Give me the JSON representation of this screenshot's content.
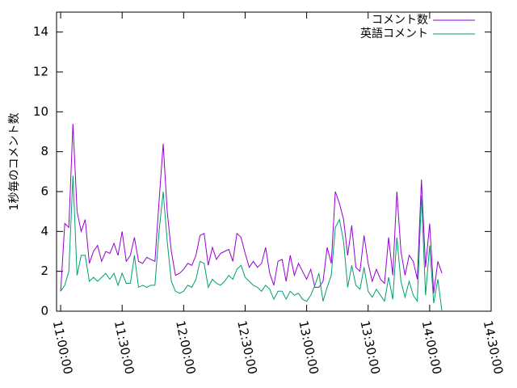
{
  "chart_data": {
    "type": "line",
    "ylabel": "1秒毎のコメント数",
    "x": [
      39600,
      39720,
      39840,
      39960,
      40080,
      40200,
      40320,
      40440,
      40560,
      40680,
      40800,
      40920,
      41040,
      41160,
      41280,
      41400,
      41520,
      41640,
      41760,
      41880,
      42000,
      42120,
      42240,
      42360,
      42480,
      42600,
      42720,
      42840,
      42960,
      43080,
      43200,
      43320,
      43440,
      43560,
      43680,
      43800,
      43920,
      44040,
      44160,
      44280,
      44400,
      44520,
      44640,
      44760,
      44880,
      45000,
      45120,
      45240,
      45360,
      45480,
      45600,
      45720,
      45840,
      45960,
      46080,
      46200,
      46320,
      46440,
      46560,
      46680,
      46800,
      46920,
      47040,
      47160,
      47280,
      47400,
      47520,
      47640,
      47760,
      47880,
      48000,
      48120,
      48240,
      48360,
      48480,
      48600,
      48720,
      48840,
      48960,
      49080,
      49200,
      49320,
      49440,
      49560,
      49680,
      49800,
      49920,
      50040,
      50160,
      50280,
      50400,
      50520,
      50640,
      50760
    ],
    "series": [
      {
        "name": "コメント数",
        "color": "#9400d3",
        "values": [
          1.0,
          4.4,
          4.2,
          9.4,
          5.0,
          4.0,
          4.6,
          2.4,
          3.0,
          3.3,
          2.5,
          3.0,
          2.9,
          3.4,
          2.8,
          4.0,
          2.5,
          2.8,
          3.7,
          2.5,
          2.4,
          2.7,
          2.6,
          2.5,
          5.5,
          8.4,
          5.0,
          3.0,
          1.8,
          1.9,
          2.1,
          2.4,
          2.3,
          2.8,
          3.8,
          3.9,
          2.3,
          3.2,
          2.6,
          2.9,
          3.0,
          3.1,
          2.5,
          3.9,
          3.7,
          2.9,
          2.2,
          2.5,
          2.2,
          2.4,
          3.2,
          1.9,
          1.3,
          2.5,
          2.6,
          1.5,
          2.8,
          1.8,
          2.4,
          2.0,
          1.6,
          2.1,
          1.2,
          1.2,
          1.5,
          3.2,
          2.4,
          6.0,
          5.4,
          4.6,
          2.8,
          4.3,
          2.2,
          2.0,
          3.8,
          2.4,
          1.5,
          2.1,
          1.6,
          1.4,
          3.7,
          1.8,
          6.0,
          3.0,
          1.8,
          2.8,
          2.5,
          1.6,
          6.6,
          2.2,
          4.4,
          0.9,
          2.5,
          1.9
        ]
      },
      {
        "name": "英語コメント",
        "color": "#009e73",
        "values": [
          1.0,
          1.3,
          2.0,
          6.8,
          1.8,
          2.8,
          2.8,
          1.5,
          1.7,
          1.5,
          1.7,
          1.9,
          1.6,
          1.9,
          1.3,
          1.9,
          1.4,
          1.4,
          2.8,
          1.2,
          1.3,
          1.2,
          1.3,
          1.3,
          4.0,
          6.0,
          3.5,
          1.5,
          1.0,
          0.9,
          1.0,
          1.3,
          1.2,
          1.6,
          2.5,
          2.4,
          1.2,
          1.6,
          1.4,
          1.3,
          1.5,
          1.8,
          1.6,
          2.1,
          2.3,
          1.7,
          1.5,
          1.3,
          1.2,
          1.0,
          1.3,
          1.1,
          0.6,
          1.0,
          1.0,
          0.6,
          1.0,
          0.8,
          0.9,
          0.6,
          0.5,
          0.8,
          1.3,
          1.9,
          0.5,
          1.2,
          1.8,
          4.2,
          4.6,
          3.5,
          1.2,
          2.3,
          1.3,
          1.1,
          2.2,
          1.0,
          0.7,
          1.1,
          0.8,
          0.5,
          1.7,
          0.6,
          3.7,
          1.5,
          0.7,
          1.5,
          0.8,
          0.5,
          5.8,
          0.8,
          3.3,
          0.4,
          1.6,
          0.0
        ]
      }
    ],
    "xlim": [
      39480,
      52200
    ],
    "xticks": [
      {
        "value": 39600,
        "label": "11:00:00"
      },
      {
        "value": 41400,
        "label": "11:30:00"
      },
      {
        "value": 43200,
        "label": "12:00:00"
      },
      {
        "value": 45000,
        "label": "12:30:00"
      },
      {
        "value": 46800,
        "label": "13:00:00"
      },
      {
        "value": 48600,
        "label": "13:30:00"
      },
      {
        "value": 50400,
        "label": "14:00:00"
      },
      {
        "value": 52200,
        "label": "14:30:00"
      }
    ],
    "ylim": [
      0,
      15
    ],
    "yticks": [
      0,
      2,
      4,
      6,
      8,
      10,
      12,
      14
    ],
    "legend": "upper right"
  }
}
